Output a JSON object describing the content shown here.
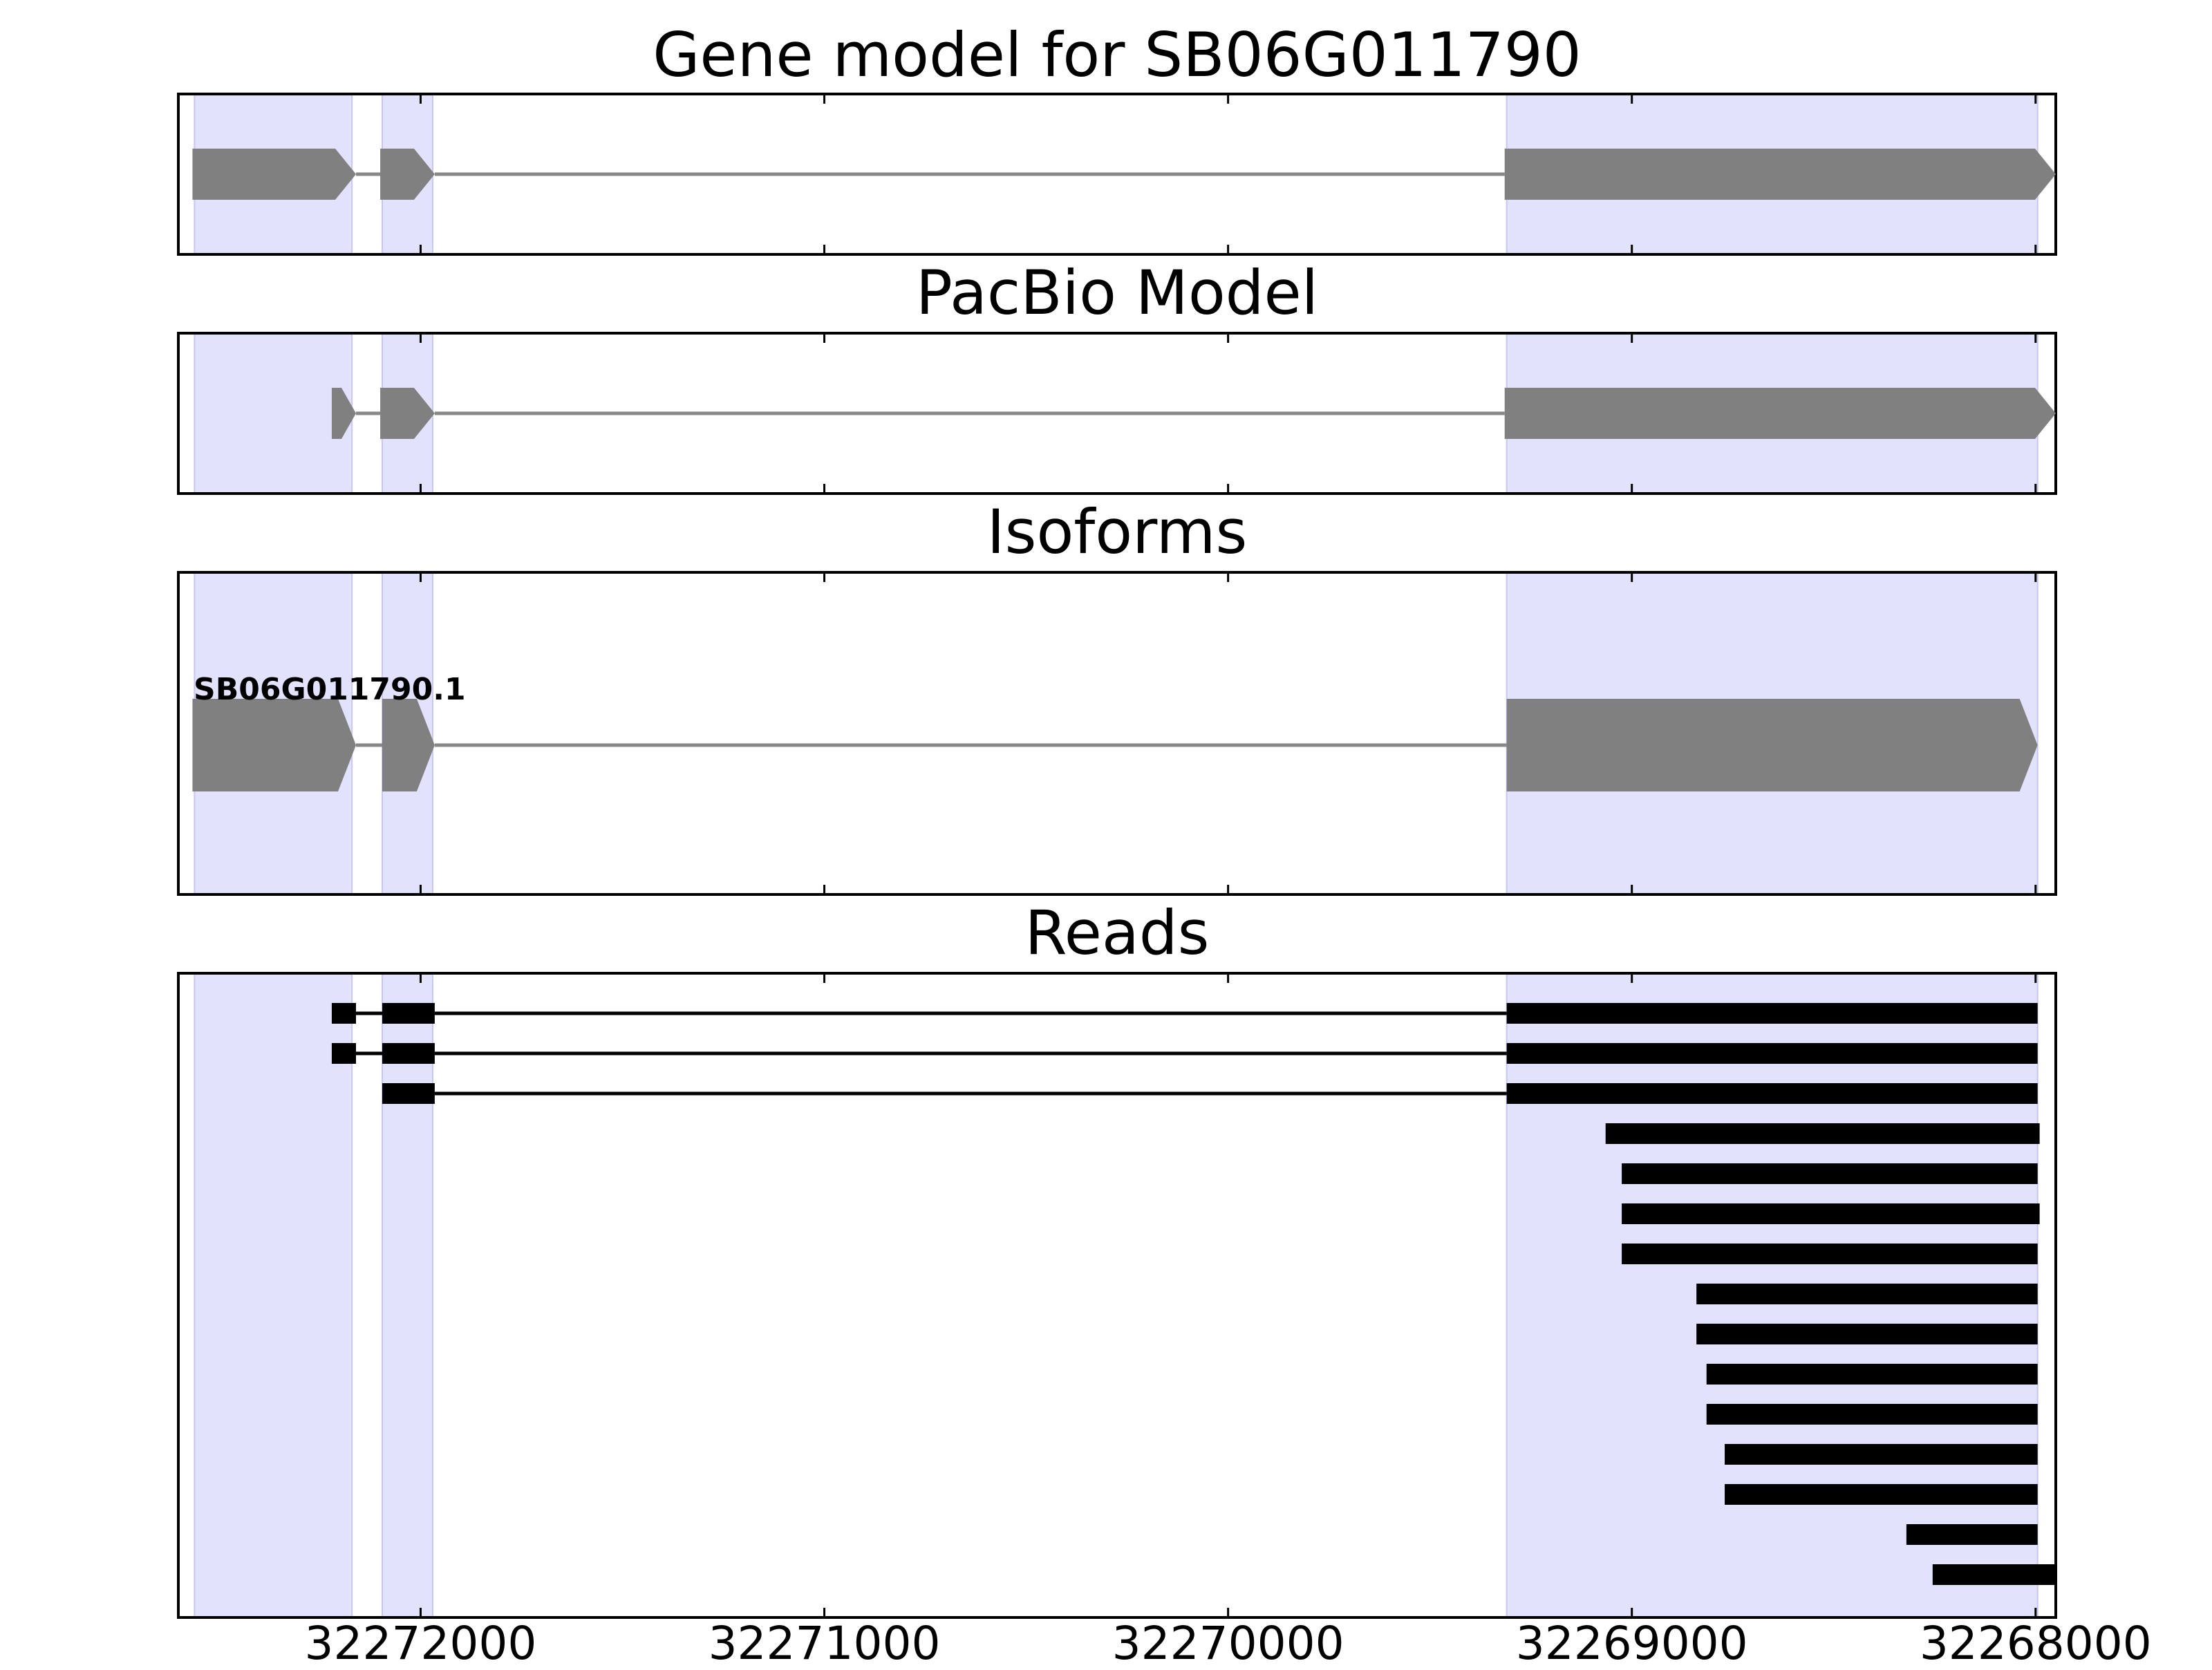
{
  "chart_data": {
    "type": "gene_track",
    "genomic_orientation": "reverse (coordinates decrease left to right)",
    "x_range": [
      32272600,
      32267950
    ],
    "x_ticks": [
      32272000,
      32271000,
      32270000,
      32269000,
      32268000
    ],
    "x_tick_labels": [
      "32272000",
      "32271000",
      "32270000",
      "32269000",
      "32268000"
    ],
    "highlight_regions": [
      [
        32272560,
        32272170
      ],
      [
        32272095,
        32271970
      ],
      [
        32269310,
        32267995
      ]
    ],
    "intron_color": "#888888",
    "exon_color": "#808080",
    "highlight_color": "#e2e2fc",
    "read_color": "#000000",
    "panels": [
      {
        "id": "gene-model",
        "title": "Gene model for SB06G011790",
        "tracks": [
          {
            "exons": [
              [
                32272565,
                32272160
              ],
              [
                32272100,
                32271965
              ],
              [
                32269315,
                32267950
              ]
            ]
          }
        ]
      },
      {
        "id": "pacbio-model",
        "title": "PacBio Model",
        "tracks": [
          {
            "exons": [
              [
                32272220,
                32272160
              ],
              [
                32272100,
                32271965
              ],
              [
                32269315,
                32267950
              ]
            ]
          }
        ]
      },
      {
        "id": "isoforms",
        "title": "Isoforms",
        "tracks": [
          {
            "label": "SB06G011790.1",
            "exons": [
              [
                32272565,
                32272160
              ],
              [
                32272095,
                32271965
              ],
              [
                32269310,
                32267995
              ]
            ]
          }
        ]
      },
      {
        "id": "reads",
        "title": "Reads",
        "reads": [
          {
            "blocks": [
              [
                32272220,
                32272160
              ],
              [
                32272095,
                32271965
              ],
              [
                32269310,
                32267995
              ]
            ]
          },
          {
            "blocks": [
              [
                32272220,
                32272160
              ],
              [
                32272095,
                32271965
              ],
              [
                32269310,
                32267995
              ]
            ]
          },
          {
            "blocks": [
              [
                32272095,
                32271965
              ],
              [
                32269310,
                32267995
              ]
            ]
          },
          {
            "blocks": [
              [
                32269065,
                32267990
              ]
            ]
          },
          {
            "blocks": [
              [
                32269025,
                32267995
              ]
            ]
          },
          {
            "blocks": [
              [
                32269025,
                32267990
              ]
            ]
          },
          {
            "blocks": [
              [
                32269025,
                32267995
              ]
            ]
          },
          {
            "blocks": [
              [
                32268840,
                32267995
              ]
            ]
          },
          {
            "blocks": [
              [
                32268840,
                32267995
              ]
            ]
          },
          {
            "blocks": [
              [
                32268815,
                32267995
              ]
            ]
          },
          {
            "blocks": [
              [
                32268815,
                32267995
              ]
            ]
          },
          {
            "blocks": [
              [
                32268770,
                32267995
              ]
            ]
          },
          {
            "blocks": [
              [
                32268770,
                32267995
              ]
            ]
          },
          {
            "blocks": [
              [
                32268320,
                32267995
              ]
            ]
          },
          {
            "blocks": [
              [
                32268255,
                32267950
              ]
            ]
          }
        ]
      }
    ]
  }
}
